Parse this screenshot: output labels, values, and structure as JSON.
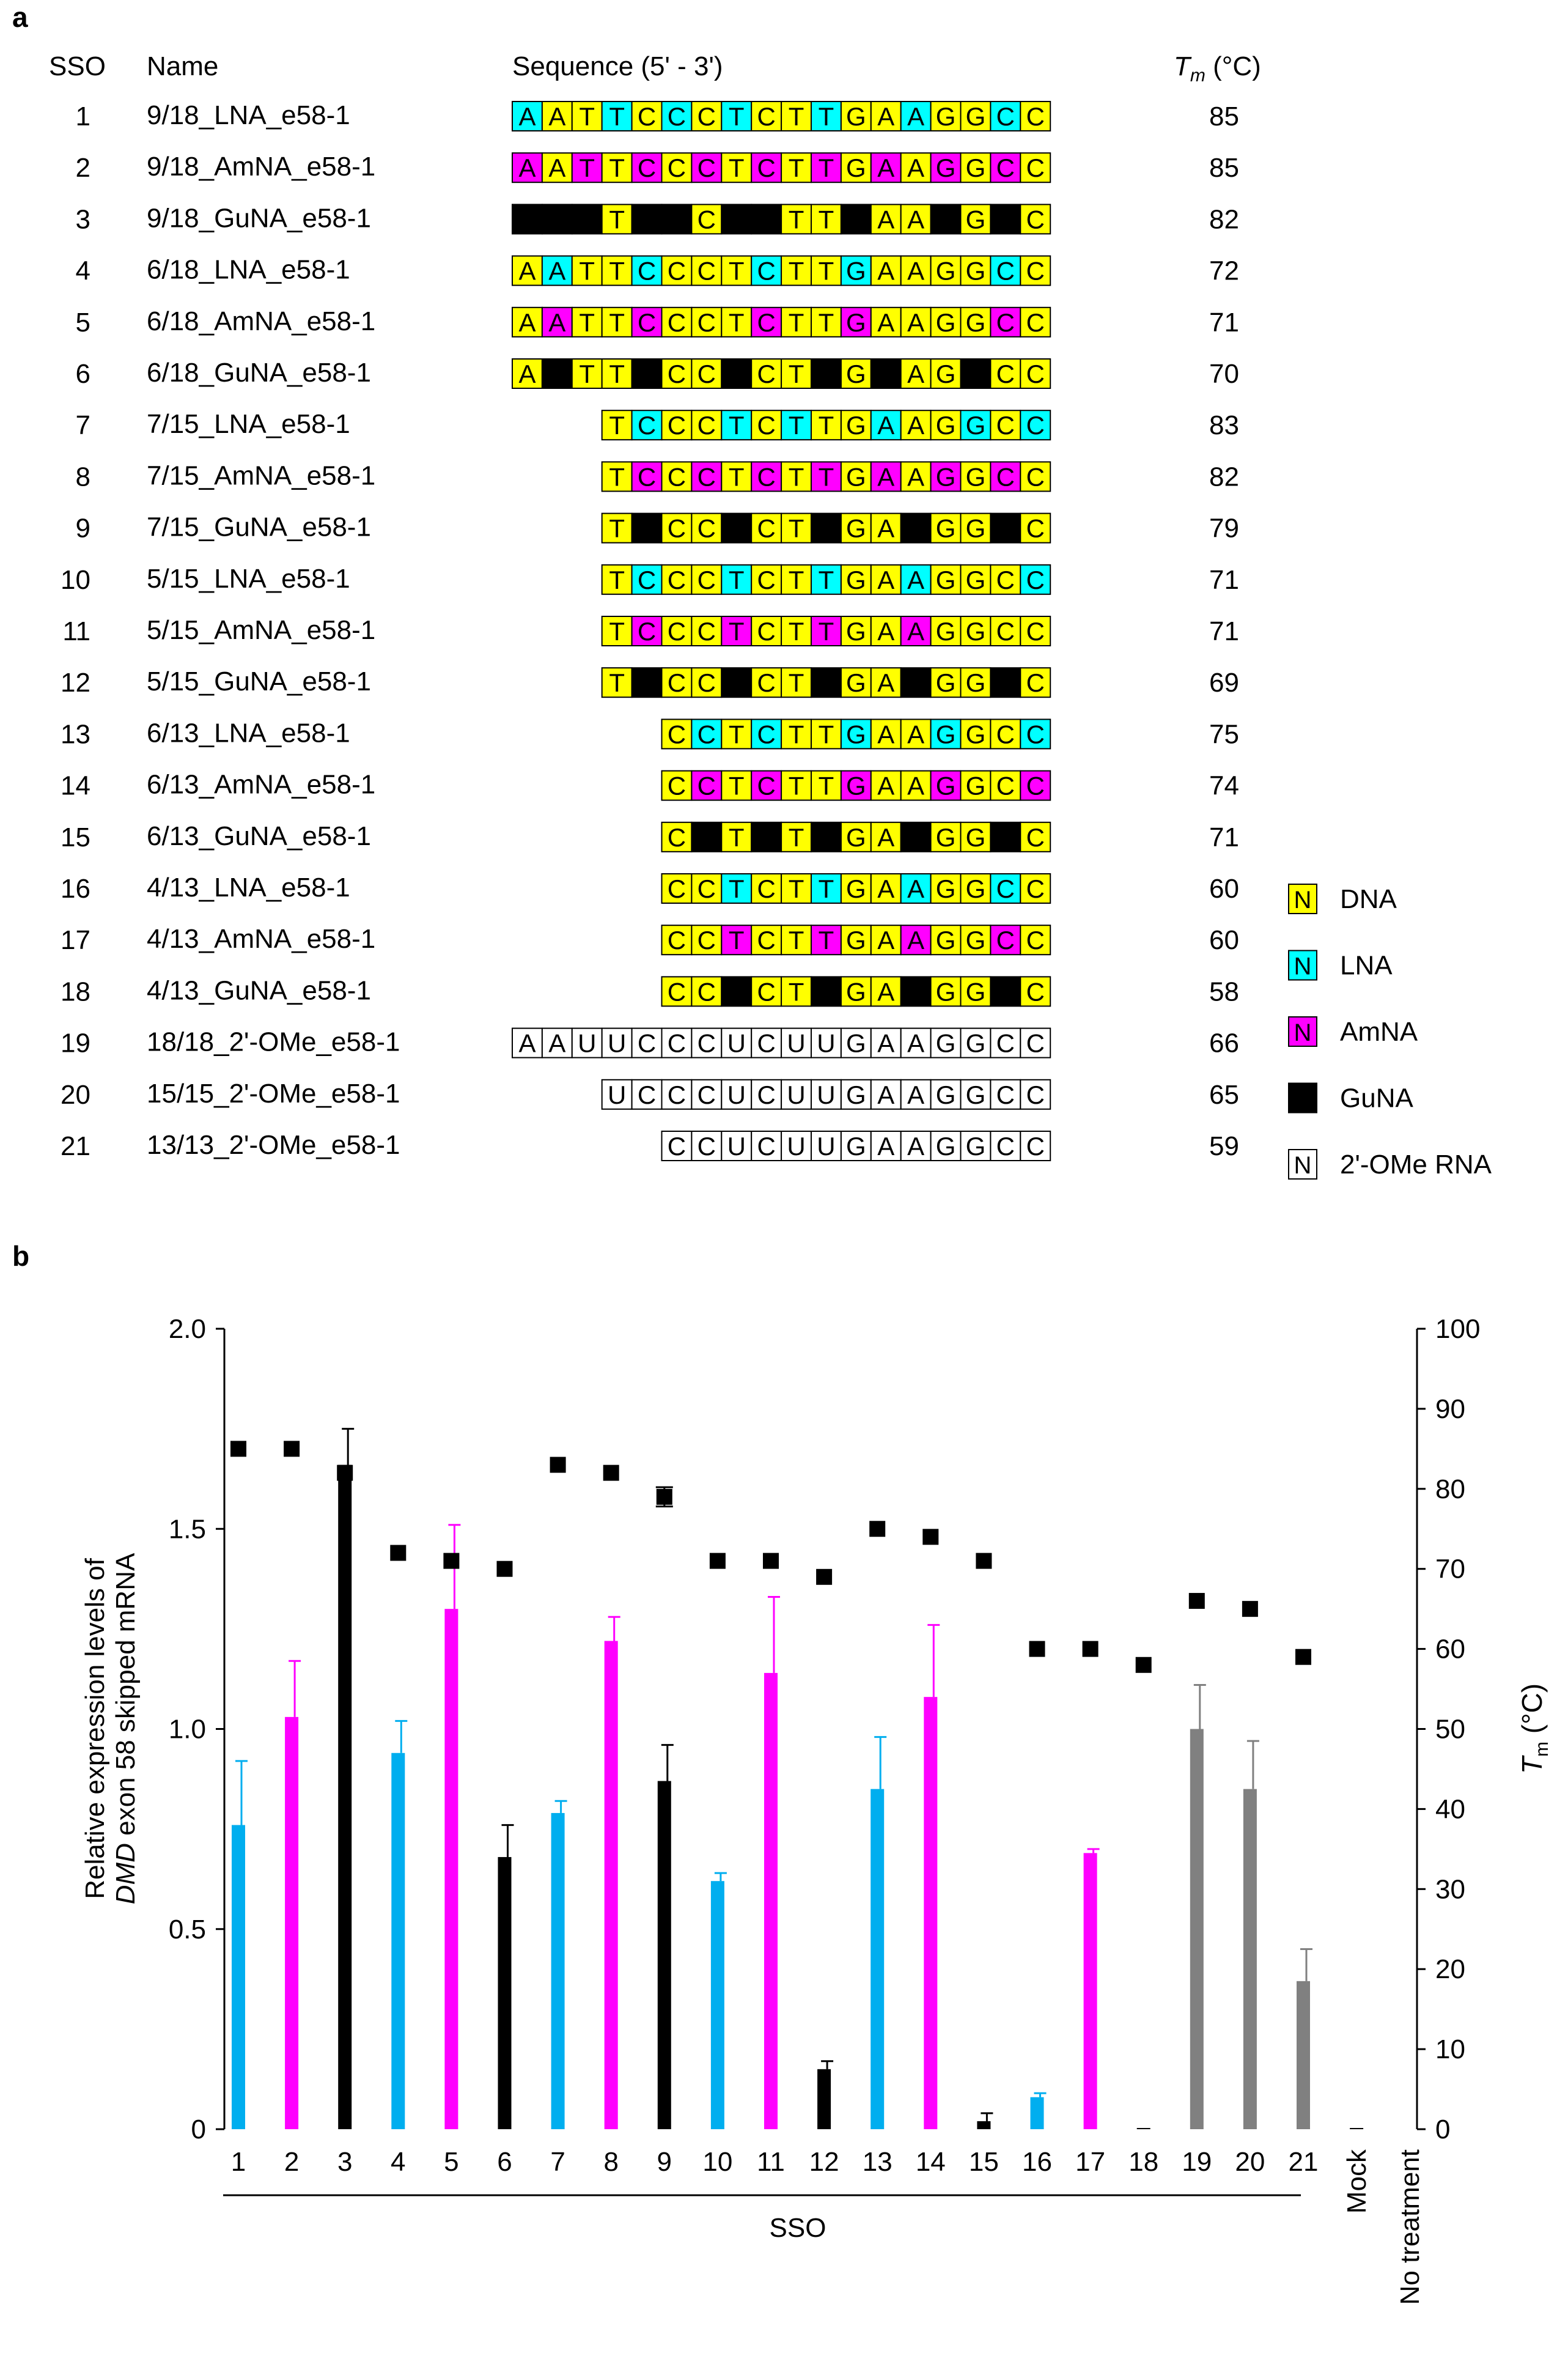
{
  "panel_a": {
    "panel_label": "a",
    "headers": {
      "sso": "SSO",
      "name": "Name",
      "sequence": "Sequence (5' - 3')",
      "tm_symbol": "T",
      "tm_sub": "m",
      "tm_unit": " (°C)"
    },
    "color_map": {
      "y": "#ffff00",
      "c": "#00ffff",
      "m": "#ff00ff",
      "k": "#000000",
      "w": "#ffffff"
    },
    "rows": [
      {
        "sso": "1",
        "name": "9/18_LNA_e58-1",
        "offset": 0,
        "bases": "AATTCCCTCTTGAAGGCC",
        "mods": "cyycycycyycyycyycy",
        "tm": "85"
      },
      {
        "sso": "2",
        "name": "9/18_AmNA_e58-1",
        "offset": 0,
        "bases": "AATTCCCTCTTGAAGGCC",
        "mods": "mymymymymymymymymy",
        "tm": "85"
      },
      {
        "sso": "3",
        "name": "9/18_GuNA_e58-1",
        "offset": 0,
        "bases": "AATTCCCTCTTGAAGGCC",
        "mods": "kkkykkykkyykyykyky",
        "tm": "82"
      },
      {
        "sso": "4",
        "name": "6/18_LNA_e58-1",
        "offset": 0,
        "bases": "AATTCCCTCTTGAAGGCC",
        "mods": "ycyycyyycyycyyyycy",
        "tm": "72"
      },
      {
        "sso": "5",
        "name": "6/18_AmNA_e58-1",
        "offset": 0,
        "bases": "AATTCCCTCTTGAAGGCC",
        "mods": "ymyymyyymyymyyyymy",
        "tm": "71"
      },
      {
        "sso": "6",
        "name": "6/18_GuNA_e58-1",
        "offset": 0,
        "bases": "AATTCCCTCTTGAAGGCC",
        "mods": "ykyykyykyykykyykyy",
        "tm": "70"
      },
      {
        "sso": "7",
        "name": "7/15_LNA_e58-1",
        "offset": 3,
        "bases": "TCCCTCTTGAAGGCC",
        "mods": "ycyycycyycyycyc",
        "tm": "83"
      },
      {
        "sso": "8",
        "name": "7/15_AmNA_e58-1",
        "offset": 3,
        "bases": "TCCCTCTTGAAGGCC",
        "mods": "ymymymymymymymy",
        "tm": "82"
      },
      {
        "sso": "9",
        "name": "7/15_GuNA_e58-1",
        "offset": 3,
        "bases": "TCCCTCTTGAAGGCC",
        "mods": "ykyykyykyykyyky",
        "tm": "79"
      },
      {
        "sso": "10",
        "name": "5/15_LNA_e58-1",
        "offset": 3,
        "bases": "TCCCTCTTGAAGGCC",
        "mods": "ycyycyycyycyyyc",
        "tm": "71"
      },
      {
        "sso": "11",
        "name": "5/15_AmNA_e58-1",
        "offset": 3,
        "bases": "TCCCTCTTGAAGGCC",
        "mods": "ymyymyymyymyyyy",
        "tm": "71"
      },
      {
        "sso": "12",
        "name": "5/15_GuNA_e58-1",
        "offset": 3,
        "bases": "TCCCTCTTGAAGGCC",
        "mods": "ykyykyykyykyyky",
        "tm": "69"
      },
      {
        "sso": "13",
        "name": "6/13_LNA_e58-1",
        "offset": 5,
        "bases": "CCTCTTGAAGGCC",
        "mods": "ycycyycyycyyc",
        "tm": "75"
      },
      {
        "sso": "14",
        "name": "6/13_AmNA_e58-1",
        "offset": 5,
        "bases": "CCTCTTGAAGGCC",
        "mods": "ymymyymyymyym",
        "tm": "74"
      },
      {
        "sso": "15",
        "name": "6/13_GuNA_e58-1",
        "offset": 5,
        "bases": "CCTCTTGAAGGCC",
        "mods": "ykykykyykyyky",
        "tm": "71"
      },
      {
        "sso": "16",
        "name": "4/13_LNA_e58-1",
        "offset": 5,
        "bases": "CCTCTTGAAGGCC",
        "mods": "yycyycyycyycy",
        "tm": "60"
      },
      {
        "sso": "17",
        "name": "4/13_AmNA_e58-1",
        "offset": 5,
        "bases": "CCTCTTGAAGGCC",
        "mods": "yymyymyymyymy",
        "tm": "60"
      },
      {
        "sso": "18",
        "name": "4/13_GuNA_e58-1",
        "offset": 5,
        "bases": "CCTCTTGAAGGCC",
        "mods": "yykyykyykyyky",
        "tm": "58"
      },
      {
        "sso": "19",
        "name": "18/18_2'-OMe_e58-1",
        "offset": 0,
        "bases": "AAUUCCCUCUUGAAGGCC",
        "mods": "wwwwwwwwwwwwwwwwww",
        "tm": "66"
      },
      {
        "sso": "20",
        "name": "15/15_2'-OMe_e58-1",
        "offset": 3,
        "bases": "UCCCUCUUGAAGGCC",
        "mods": "wwwwwwwwwwwwwww",
        "tm": "65"
      },
      {
        "sso": "21",
        "name": "13/13_2'-OMe_e58-1",
        "offset": 5,
        "bases": "CCUCUUGAAGGCC",
        "mods": "wwwwwwwwwwwww",
        "tm": "59"
      }
    ],
    "legend": [
      {
        "symbol": "N",
        "color": "#ffff00",
        "text_color": "#000000",
        "label": "DNA"
      },
      {
        "symbol": "N",
        "color": "#00ffff",
        "text_color": "#000000",
        "label": "LNA"
      },
      {
        "symbol": "N",
        "color": "#ff00ff",
        "text_color": "#000000",
        "label": "AmNA"
      },
      {
        "symbol": "N",
        "color": "#000000",
        "text_color": "#ffffff",
        "label": "GuNA"
      },
      {
        "symbol": "N",
        "color": "#ffffff",
        "text_color": "#000000",
        "label": "2'-OMe RNA"
      }
    ]
  },
  "chart_data": {
    "type": "bar",
    "panel_label": "b",
    "title": "",
    "categories": [
      "1",
      "2",
      "3",
      "4",
      "5",
      "6",
      "7",
      "8",
      "9",
      "10",
      "11",
      "12",
      "13",
      "14",
      "15",
      "16",
      "17",
      "18",
      "19",
      "20",
      "21",
      "Mock",
      "No treatment"
    ],
    "series": [
      {
        "name": "Relative expression levels of DMD exon 58 skipped mRNA",
        "axis": "left",
        "values": [
          0.76,
          1.03,
          1.66,
          0.94,
          1.3,
          0.68,
          0.79,
          1.22,
          0.87,
          0.62,
          1.14,
          0.15,
          0.85,
          1.08,
          0.02,
          0.08,
          0.69,
          0.003,
          1.0,
          0.85,
          0.37,
          0.003,
          0
        ],
        "errors": [
          0.16,
          0.14,
          0.09,
          0.08,
          0.21,
          0.08,
          0.03,
          0.06,
          0.09,
          0.02,
          0.19,
          0.02,
          0.13,
          0.18,
          0.02,
          0.01,
          0.01,
          0,
          0.11,
          0.12,
          0.08,
          0,
          0
        ],
        "colors": [
          "#00aeef",
          "#ff00ff",
          "#000000",
          "#00aeef",
          "#ff00ff",
          "#000000",
          "#00aeef",
          "#ff00ff",
          "#000000",
          "#00aeef",
          "#ff00ff",
          "#000000",
          "#00aeef",
          "#ff00ff",
          "#000000",
          "#00aeef",
          "#ff00ff",
          "#000000",
          "#808080",
          "#808080",
          "#808080",
          "#000000",
          "#000000"
        ]
      },
      {
        "name": "Tm",
        "axis": "right",
        "marker": "square",
        "color": "#000000",
        "values": [
          85,
          85,
          82,
          72,
          71,
          70,
          83,
          82,
          79,
          71,
          71,
          69,
          75,
          74,
          71,
          60,
          60,
          58,
          66,
          65,
          59,
          null,
          null
        ],
        "errors": [
          0,
          0,
          0,
          0,
          0,
          0,
          0,
          0,
          1.2,
          0,
          0,
          0,
          0,
          0,
          0,
          0,
          0,
          0,
          0,
          0,
          0,
          0,
          0
        ]
      }
    ],
    "ylim": [
      0,
      2.0
    ],
    "yticks": [
      "0",
      "0.5",
      "1.0",
      "1.5",
      "2.0"
    ],
    "ylim_right": [
      0,
      100
    ],
    "yticks_right": [
      "0",
      "10",
      "20",
      "30",
      "40",
      "50",
      "60",
      "70",
      "80",
      "90",
      "100"
    ],
    "ylabel_lines": [
      "Relative expression levels of",
      "DMD exon 58 skipped mRNA"
    ],
    "ylabel_italic_word": "DMD",
    "ylabel_right": "T",
    "ylabel_right_sub": "m",
    "ylabel_right_unit": " (°C)",
    "xgroup_label": "SSO"
  }
}
